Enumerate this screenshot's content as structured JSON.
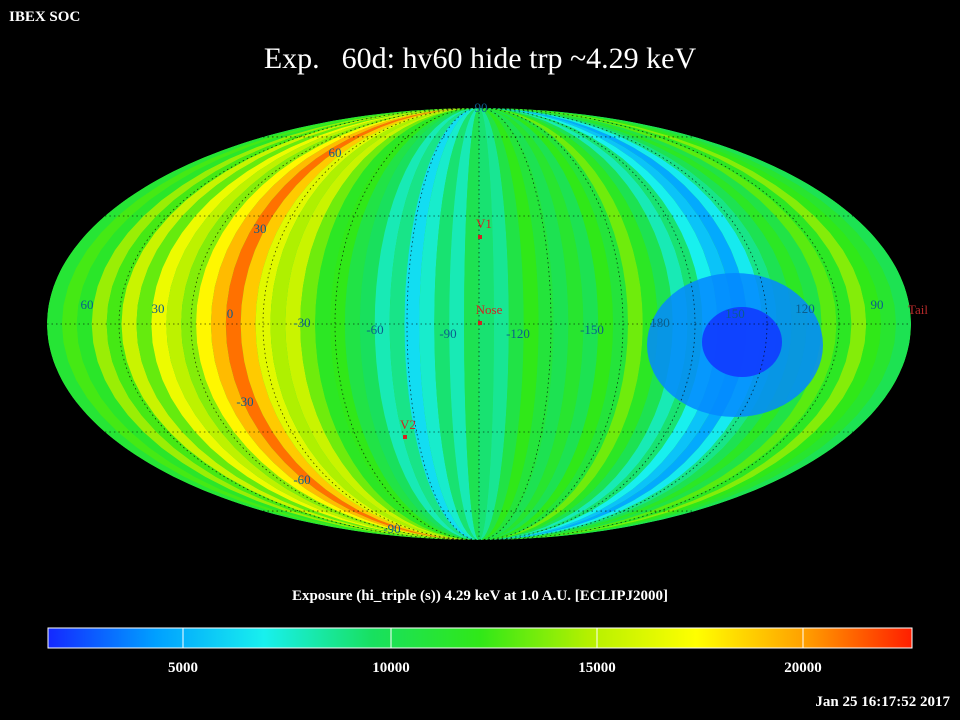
{
  "header": {
    "corner_label": "IBEX SOC",
    "title_prefix": "Exp.",
    "title_main": "60d: hv60 hide trp ~4.29 keV"
  },
  "map": {
    "projection": "Mollweide (ecliptic J2000)",
    "longitude_labels": [
      "60",
      "30",
      "0",
      "-30",
      "-60",
      "-90",
      "-120",
      "-150",
      "180",
      "150",
      "120",
      "90"
    ],
    "latitude_labels": [
      "90",
      "60",
      "30",
      "-30",
      "-60",
      "-90"
    ],
    "markers": [
      {
        "label": "V1",
        "color": "#d22222"
      },
      {
        "label": "Nose",
        "color": "#d22222"
      },
      {
        "label": "V2",
        "color": "#d22222"
      },
      {
        "label": "Tail",
        "color": "#b82a2a"
      }
    ]
  },
  "colorbar": {
    "caption": "Exposure (hi_triple (s))  4.29 keV at 1.0 A.U. [ECLIPJ2000]",
    "ticks": [
      "5000",
      "10000",
      "15000",
      "20000"
    ],
    "range": [
      2200,
      23000
    ],
    "colors": [
      "#1428ff",
      "#00a0ff",
      "#18f0ee",
      "#18e060",
      "#30e818",
      "#b4f000",
      "#ffff00",
      "#ffa000",
      "#ff1e00"
    ]
  },
  "footer": {
    "timestamp": "Jan 25 16:17:52 2017"
  }
}
